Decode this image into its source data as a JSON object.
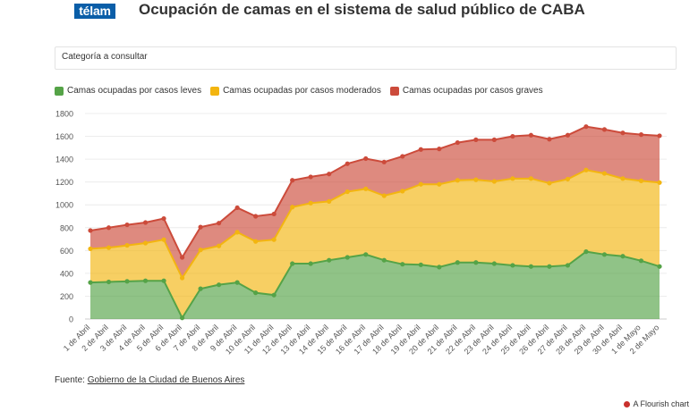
{
  "header": {
    "logo_text": "télam",
    "title": "Ocupación de camas en el sistema de salud público de CABA"
  },
  "filter": {
    "label": "Categoría a consultar"
  },
  "colors": {
    "leves": "#55a347",
    "moderados": "#f3b510",
    "graves": "#cc4b3b"
  },
  "chart_data": {
    "type": "area",
    "stacked": true,
    "ylim": [
      0,
      1800
    ],
    "yticks": [
      0,
      200,
      400,
      600,
      800,
      1000,
      1200,
      1400,
      1600,
      1800
    ],
    "grid": true,
    "legend_position": "top-left",
    "categories": [
      "1 de Abril",
      "2 de Abril",
      "3 de Abril",
      "4 de Abril",
      "5 de Abril",
      "6 de Abril",
      "7 de Abril",
      "8 de Abril",
      "9 de Abril",
      "10 de Abril",
      "11 de Abril",
      "12 de Abril",
      "13 de Abril",
      "14 de Abril",
      "15 de Abril",
      "16 de Abril",
      "17 de Abril",
      "18 de Abril",
      "19 de Abril",
      "20 de Abril",
      "21 de Abril",
      "22 de Abril",
      "23 de Abril",
      "24 de Abril",
      "25 de Abril",
      "26 de Abril",
      "27 de Abril",
      "28 de Abril",
      "29 de Abril",
      "30 de Abril",
      "1 de Mayo",
      "2 de Mayo"
    ],
    "series": [
      {
        "name": "Camas ocupadas por casos leves",
        "color": "#55a347",
        "values": [
          320,
          325,
          330,
          335,
          335,
          10,
          265,
          300,
          320,
          230,
          210,
          485,
          485,
          515,
          540,
          565,
          515,
          480,
          475,
          455,
          495,
          495,
          485,
          470,
          460,
          460,
          470,
          590,
          565,
          550,
          510,
          460
        ]
      },
      {
        "name": "Camas ocupadas por casos moderados",
        "color": "#f3b510",
        "values": [
          295,
          300,
          315,
          330,
          360,
          350,
          340,
          340,
          440,
          450,
          485,
          495,
          530,
          515,
          575,
          575,
          565,
          640,
          705,
          725,
          720,
          725,
          720,
          760,
          770,
          730,
          755,
          715,
          710,
          680,
          700,
          735
        ]
      },
      {
        "name": "Camas ocupadas por casos graves",
        "color": "#cc4b3b",
        "values": [
          160,
          175,
          180,
          180,
          185,
          180,
          200,
          200,
          215,
          220,
          225,
          235,
          230,
          240,
          245,
          265,
          295,
          305,
          305,
          310,
          330,
          350,
          365,
          370,
          380,
          385,
          385,
          380,
          385,
          400,
          405,
          410
        ]
      }
    ]
  },
  "footer": {
    "source_prefix": "Fuente: ",
    "source_link": "Gobierno de la Ciudad de Buenos Aires",
    "flourish": "A Flourish chart"
  }
}
